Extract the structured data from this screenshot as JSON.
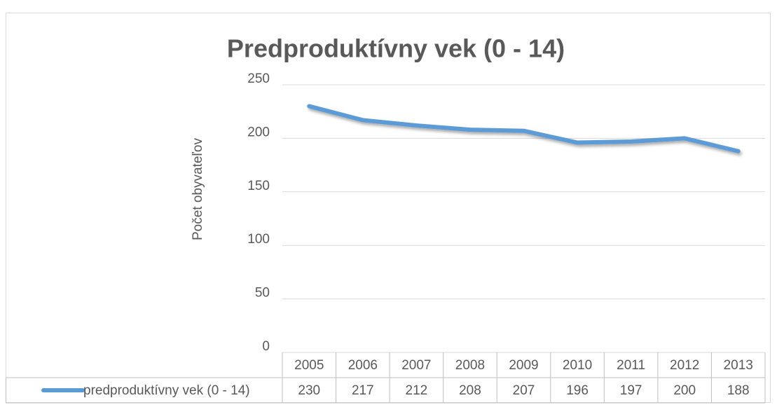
{
  "chart_data": {
    "type": "line",
    "title": "Predproduktívny vek (0 - 14)",
    "y_label": "Počet obyvateľov",
    "categories": [
      "2005",
      "2006",
      "2007",
      "2008",
      "2009",
      "2010",
      "2011",
      "2012",
      "2013"
    ],
    "series": [
      {
        "name": "predproduktívny vek (0 - 14)",
        "color": "#5b9bd5",
        "values": [
          230,
          217,
          212,
          208,
          207,
          196,
          197,
          200,
          188
        ]
      }
    ],
    "ylim": [
      0,
      250
    ],
    "yticks": [
      0,
      50,
      100,
      150,
      200,
      250
    ],
    "grid": true,
    "data_table": true
  }
}
